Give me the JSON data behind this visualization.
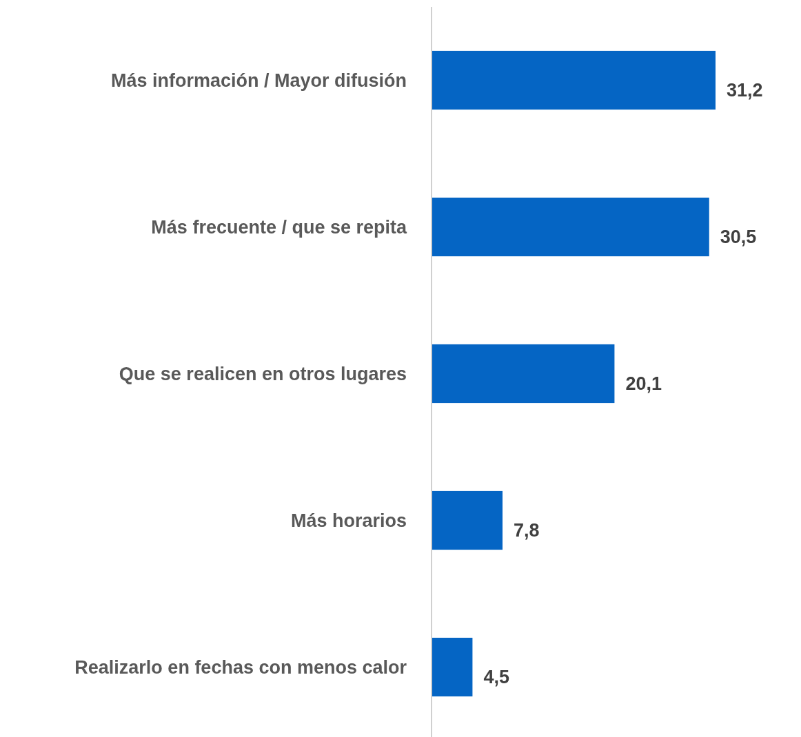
{
  "chart_data": {
    "type": "bar",
    "orientation": "horizontal",
    "categories": [
      "Más información / Mayor difusión",
      "Más frecuente / que se repita",
      "Que se realicen en otros lugares",
      "Más horarios",
      "Realizarlo en fechas con menos calor"
    ],
    "values": [
      31.2,
      30.5,
      20.1,
      7.8,
      4.5
    ],
    "value_labels": [
      "31,2",
      "30,5",
      "20,1",
      "7,8",
      "4,5"
    ],
    "color": "#0565c4"
  }
}
